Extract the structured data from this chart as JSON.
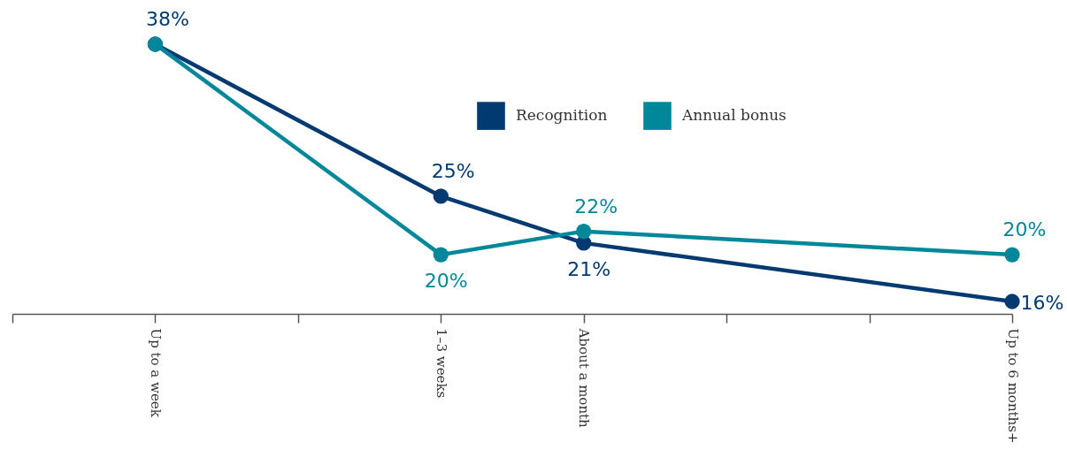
{
  "chart_data": {
    "type": "line",
    "categories": [
      null,
      "Up to a week",
      null,
      "1–3 weeks",
      "About a month",
      null,
      null,
      "Up to 6 months+"
    ],
    "series": [
      {
        "name": "Recognition",
        "color": "#003a70",
        "values": [
          null,
          38,
          null,
          25,
          21,
          null,
          null,
          16
        ],
        "value_labels": [
          null,
          "38%",
          null,
          "25%",
          "21%",
          null,
          null,
          "16%"
        ]
      },
      {
        "name": "Annual bonus",
        "color": "#00889a",
        "values": [
          null,
          38,
          null,
          20,
          22,
          null,
          null,
          20
        ],
        "value_labels": [
          null,
          null,
          null,
          "20%",
          "22%",
          null,
          null,
          "20%"
        ]
      }
    ],
    "marker": "circle",
    "line_style": "solid",
    "legend": "top",
    "grid": false,
    "tick_labels": "x"
  }
}
